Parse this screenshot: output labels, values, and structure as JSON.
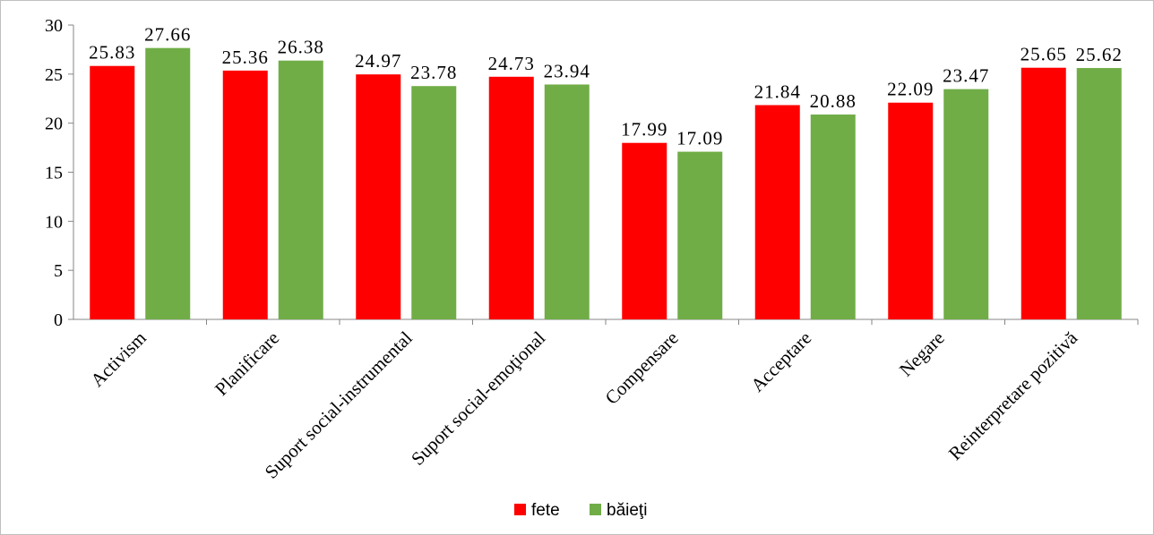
{
  "chart_data": {
    "type": "bar",
    "title": "",
    "xlabel": "",
    "ylabel": "",
    "ylim": [
      0,
      30
    ],
    "yticks": [
      0,
      5,
      10,
      15,
      20,
      25,
      30
    ],
    "grid": false,
    "legend_position": "bottom",
    "categories": [
      "Activism",
      "Planificare",
      "Suport social-instrumental",
      "Suport social-emoţional",
      "Compensare",
      "Acceptare",
      "Negare",
      "Reinterpretare pozitivă"
    ],
    "series": [
      {
        "name": "fete",
        "color": "#ff0000",
        "values": [
          25.83,
          25.36,
          24.97,
          24.73,
          17.99,
          21.84,
          22.09,
          25.65
        ]
      },
      {
        "name": "băieţi",
        "color": "#70ad47",
        "values": [
          27.66,
          26.38,
          23.78,
          23.94,
          17.09,
          20.88,
          23.47,
          25.62
        ]
      }
    ]
  }
}
